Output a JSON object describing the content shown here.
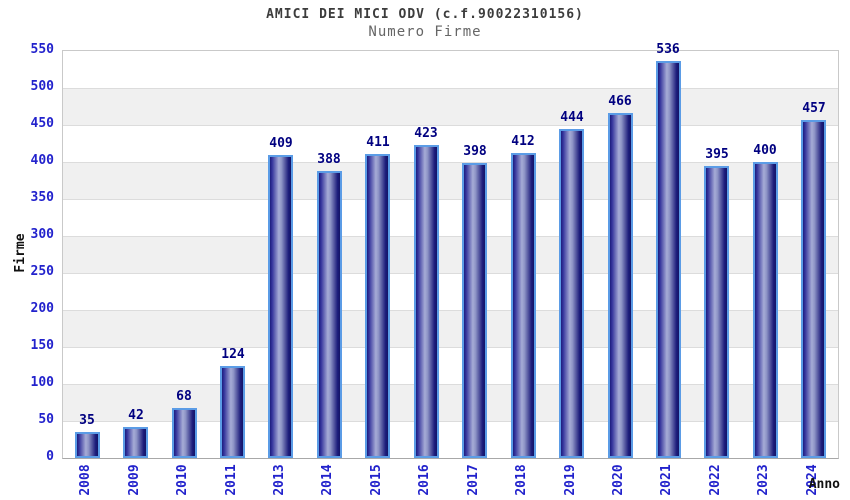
{
  "chart_data": {
    "type": "bar",
    "title": "AMICI DEI MICI ODV (c.f.90022310156)",
    "subtitle": "Numero Firme",
    "xlabel": "Anno",
    "ylabel": "Firme",
    "categories": [
      "2008",
      "2009",
      "2010",
      "2011",
      "2013",
      "2014",
      "2015",
      "2016",
      "2017",
      "2018",
      "2019",
      "2020",
      "2021",
      "2022",
      "2023",
      "2024"
    ],
    "values": [
      35,
      42,
      68,
      124,
      409,
      388,
      411,
      423,
      398,
      412,
      444,
      466,
      536,
      395,
      400,
      457
    ],
    "ylim": [
      0,
      550
    ],
    "ytick_step": 50,
    "grid": "horizontal-with-alternating-bands",
    "legend": "none",
    "colors": {
      "bar_dark": "#1d1d7c",
      "bar_mid": "#34349c",
      "bar_light": "#a6acd6",
      "bar_light_shade": "#8e94c6",
      "bar_edge_dark": "#141466",
      "bar_border": "#5b9ce6",
      "tick_label": "#2222cc",
      "value_label": "#000080",
      "band": "#f0f0f0",
      "gridline": "#dcdcdc",
      "plot_border": "#c9c9c9",
      "axis_line": "#a8a8a8",
      "title_color": "#3c3c3c",
      "subtitle_color": "#666666",
      "axis_title_color": "#111111",
      "background": "#ffffff"
    }
  }
}
